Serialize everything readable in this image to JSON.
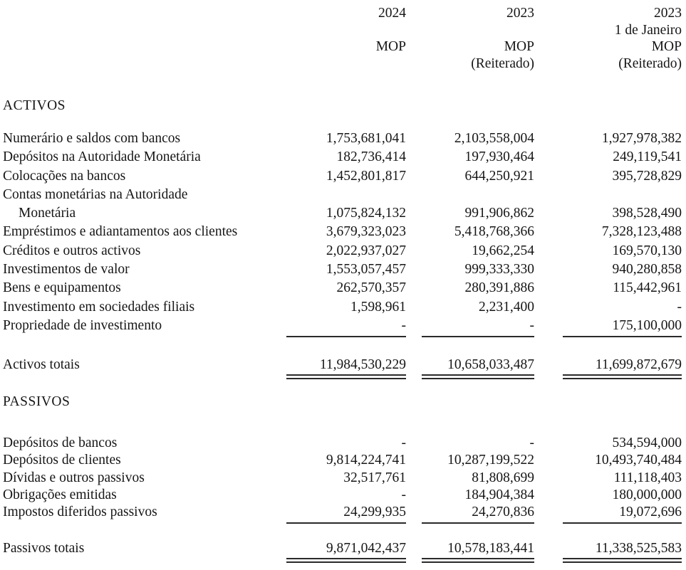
{
  "header": {
    "columns": [
      {
        "year": "2024",
        "date_note": "",
        "currency": "MOP",
        "restated": ""
      },
      {
        "year": "2023",
        "date_note": "",
        "currency": "MOP",
        "restated": "(Reiterado)"
      },
      {
        "year": "2023",
        "date_note": "1 de Janeiro",
        "currency": "MOP",
        "restated": "(Reiterado)"
      }
    ]
  },
  "sections": [
    {
      "id": "assets",
      "title": "ACTIVOS",
      "rows": [
        {
          "label": "Numerário e saldos com bancos",
          "values": [
            "1,753,681,041",
            "2,103,558,004",
            "1,927,978,382"
          ]
        },
        {
          "label": "Depósitos na Autoridade Monetária",
          "values": [
            "182,736,414",
            "197,930,464",
            "249,119,541"
          ]
        },
        {
          "label": "Colocações na bancos",
          "values": [
            "1,452,801,817",
            "644,250,921",
            "395,728,829"
          ]
        },
        {
          "label": "Contas monetárias na Autoridade",
          "values": [
            "",
            "",
            ""
          ]
        },
        {
          "label": "Monetária",
          "indent": true,
          "values": [
            "1,075,824,132",
            "991,906,862",
            "398,528,490"
          ]
        },
        {
          "label": "Empréstimos e adiantamentos aos clientes",
          "values": [
            "3,679,323,023",
            "5,418,768,366",
            "7,328,123,488"
          ]
        },
        {
          "label": "Créditos e outros activos",
          "values": [
            "2,022,937,027",
            "19,662,254",
            "169,570,130"
          ]
        },
        {
          "label": "Investimentos de valor",
          "values": [
            "1,553,057,457",
            "999,333,330",
            "940,280,858"
          ]
        },
        {
          "label": "Bens e equipamentos",
          "values": [
            "262,570,357",
            "280,391,886",
            "115,442,961"
          ]
        },
        {
          "label": "Investimento em sociedades filiais",
          "values": [
            "1,598,961",
            "2,231,400",
            "-"
          ]
        },
        {
          "label": "Propriedade de investimento",
          "rule": "single",
          "values": [
            "-",
            "-",
            "175,100,000"
          ]
        }
      ],
      "total": {
        "label": "Activos totais",
        "rule": "double",
        "values": [
          "11,984,530,229",
          "10,658,033,487",
          "11,699,872,679"
        ]
      }
    },
    {
      "id": "liabilities",
      "title": "PASSIVOS",
      "rows": [
        {
          "label": "Depósitos de bancos",
          "values": [
            "-",
            "-",
            "534,594,000"
          ]
        },
        {
          "label": "Depósitos de clientes",
          "values": [
            "9,814,224,741",
            "10,287,199,522",
            "10,493,740,484"
          ]
        },
        {
          "label": "Dívidas e outros passivos",
          "values": [
            "32,517,761",
            "81,808,699",
            "111,118,403"
          ]
        },
        {
          "label": "Obrigações emitidas",
          "values": [
            "-",
            "184,904,384",
            "180,000,000"
          ]
        },
        {
          "label": "Impostos diferidos passivos",
          "rule": "single",
          "values": [
            "24,299,935",
            "24,270,836",
            "19,072,696"
          ]
        }
      ],
      "total": {
        "label": "Passivos totais",
        "rule": "double",
        "values": [
          "9,871,042,437",
          "10,578,183,441",
          "11,338,525,583"
        ]
      }
    }
  ]
}
